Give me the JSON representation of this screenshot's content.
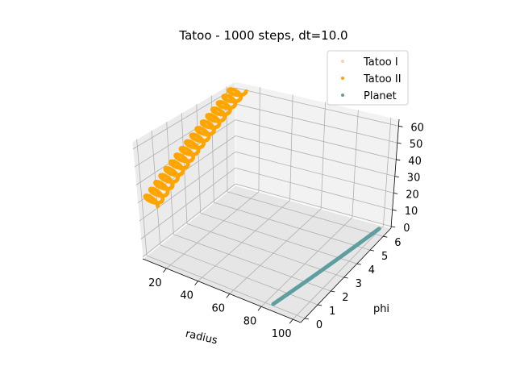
{
  "chart_data": {
    "type": "scatter",
    "projection": "3d",
    "title": "Tatoo - 1000 steps, dt=10.0",
    "xlabel": "radius",
    "ylabel": "phi",
    "zlabel": "",
    "xlim": [
      5,
      105
    ],
    "ylim": [
      -0.3,
      6.6
    ],
    "zlim": [
      -1,
      64
    ],
    "xticks": [
      "20",
      "40",
      "60",
      "80",
      "100"
    ],
    "yticks": [
      "0",
      "1",
      "2",
      "3",
      "4",
      "5",
      "6"
    ],
    "zticks": [
      "0",
      "10",
      "20",
      "30",
      "40",
      "50",
      "60"
    ],
    "legend": {
      "placement": "upper right",
      "entries": [
        "Tatoo I",
        "Tatoo II",
        "Planet"
      ]
    },
    "grid": true,
    "series": [
      {
        "name": "Tatoo I",
        "color": "#ffd1a6",
        "marker": "o"
      },
      {
        "name": "Tatoo II",
        "color": "#ffa500",
        "marker": "o",
        "description": "helix",
        "x_center": 10,
        "x_amplitude": 4.5,
        "phi_range": [
          0,
          6.28
        ],
        "z_range": [
          30,
          62
        ],
        "turns": 17
      },
      {
        "name": "Planet",
        "color": "#5f9ea0",
        "marker": "o",
        "description": "curve",
        "x_range": [
          85,
          100
        ],
        "phi_range": [
          0,
          6.28
        ],
        "z": 0
      }
    ]
  }
}
